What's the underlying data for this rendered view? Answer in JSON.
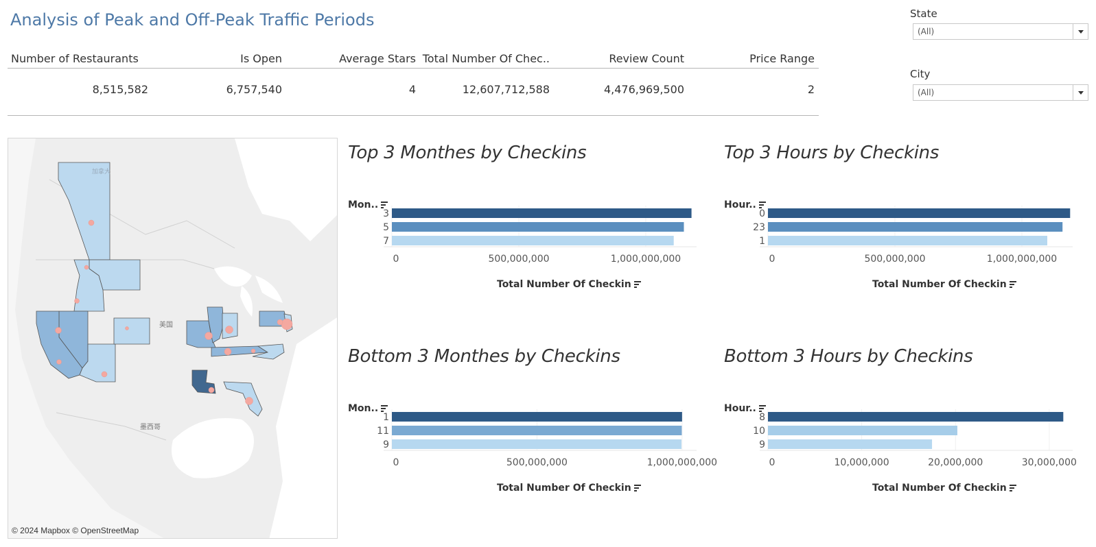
{
  "header": {
    "title": "Analysis of Peak and Off-Peak Traffic Periods"
  },
  "kpis": {
    "headers": [
      "Number of Restaurants",
      "Is Open",
      "Average Stars",
      "Total Number Of Chec..",
      "Review Count",
      "Price Range"
    ],
    "values": [
      "8,515,582",
      "6,757,540",
      "4",
      "12,607,712,588",
      "4,476,969,500",
      "2"
    ]
  },
  "filters": {
    "state": {
      "label": "State",
      "value": "(All)"
    },
    "city": {
      "label": "City",
      "value": "(All)"
    }
  },
  "map": {
    "attribution": "© 2024 Mapbox © OpenStreetMap",
    "labels": {
      "usa": "美国",
      "mexico": "墨西哥",
      "canada": "加拿大"
    },
    "colors": {
      "land": "#e8e8e8",
      "water": "#ffffff",
      "light": "#bcd9ef",
      "mid": "#8fb6da",
      "dark": "#41688f",
      "dot": "#f4a8a0"
    }
  },
  "colors": {
    "bar1": "#2e5a87",
    "bar2": "#5b8fbf",
    "bar3": "#b6d8f0",
    "bar2b": "#7aa9d2",
    "bar3b": "#a6cde9"
  },
  "chart_data": [
    {
      "type": "bar",
      "orientation": "horizontal",
      "title": "Top 3 Monthes by Checkins",
      "dim_label": "Mon..",
      "categories": [
        "3",
        "5",
        "7"
      ],
      "values": [
        1180000000,
        1150000000,
        1110000000
      ],
      "xlabel": "Total Number Of Checkin",
      "xlim": [
        0,
        1200000000
      ],
      "ticks": [
        0,
        500000000,
        1000000000
      ],
      "tick_labels": [
        "0",
        "500,000,000",
        "1,000,000,000"
      ]
    },
    {
      "type": "bar",
      "orientation": "horizontal",
      "title": "Top 3 Hours by Checkins",
      "dim_label": "Hour..",
      "categories": [
        "0",
        "23",
        "1"
      ],
      "values": [
        1190000000,
        1160000000,
        1100000000
      ],
      "xlabel": "Total Number Of Checkin",
      "xlim": [
        0,
        1200000000
      ],
      "ticks": [
        0,
        500000000,
        1000000000
      ],
      "tick_labels": [
        "0",
        "500,000,000",
        "1,000,000,000"
      ]
    },
    {
      "type": "bar",
      "orientation": "horizontal",
      "title": "Bottom 3 Monthes by Checkins",
      "dim_label": "Mon..",
      "categories": [
        "1",
        "11",
        "9"
      ],
      "values": [
        1000000000,
        999000000,
        998000000
      ],
      "xlabel": "Total Number Of Checkin",
      "xlim": [
        0,
        1050000000
      ],
      "ticks": [
        0,
        500000000,
        1000000000
      ],
      "tick_labels": [
        "0",
        "500,000,000",
        "1,000,000,000"
      ]
    },
    {
      "type": "bar",
      "orientation": "horizontal",
      "title": "Bottom 3 Hours by Checkins",
      "dim_label": "Hour..",
      "categories": [
        "8",
        "10",
        "9"
      ],
      "values": [
        31500000,
        20200000,
        17500000
      ],
      "xlabel": "Total Number Of Checkin",
      "xlim": [
        0,
        32500000
      ],
      "ticks": [
        0,
        10000000,
        20000000,
        30000000
      ],
      "tick_labels": [
        "0",
        "10,000,000",
        "20,000,000",
        "30,000,000"
      ]
    }
  ]
}
